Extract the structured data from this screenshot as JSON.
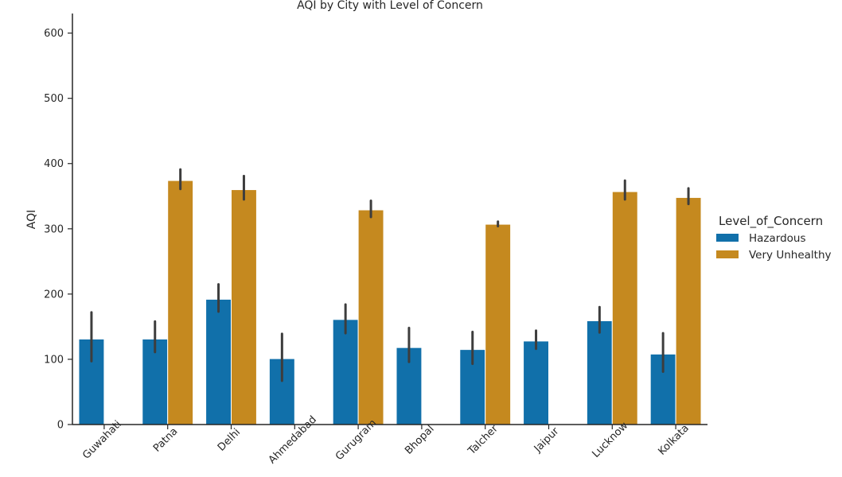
{
  "chart_data": {
    "type": "bar",
    "title": "AQI by City with Level of Concern",
    "xlabel": "",
    "ylabel": "AQI",
    "ylim": [
      0,
      630
    ],
    "yticks": [
      0,
      100,
      200,
      300,
      400,
      500,
      600
    ],
    "categories": [
      "Guwahati",
      "Patna",
      "Delhi",
      "Ahmedabad",
      "Gurugram",
      "Bhopal",
      "Talcher",
      "Jaipur",
      "Lucknow",
      "Kolkata"
    ],
    "legend": {
      "title": "Level_of_Concern",
      "placement": "center-right, outside"
    },
    "series": [
      {
        "name": "Hazardous",
        "color": "#1170aa",
        "values": [
          131,
          131,
          192,
          101,
          161,
          118,
          115,
          128,
          159,
          108
        ],
        "err_low": [
          97,
          111,
          173,
          67,
          140,
          96,
          93,
          116,
          141,
          81
        ],
        "err_high": [
          172,
          158,
          215,
          139,
          184,
          148,
          142,
          144,
          180,
          140
        ]
      },
      {
        "name": "Very Unhealthy",
        "color": "#c5891f",
        "values": [
          null,
          374,
          360,
          null,
          329,
          null,
          307,
          null,
          357,
          348
        ],
        "err_low": [
          null,
          361,
          345,
          null,
          318,
          null,
          304,
          null,
          345,
          338
        ],
        "err_high": [
          null,
          391,
          381,
          null,
          343,
          null,
          311,
          null,
          374,
          362
        ]
      }
    ]
  }
}
